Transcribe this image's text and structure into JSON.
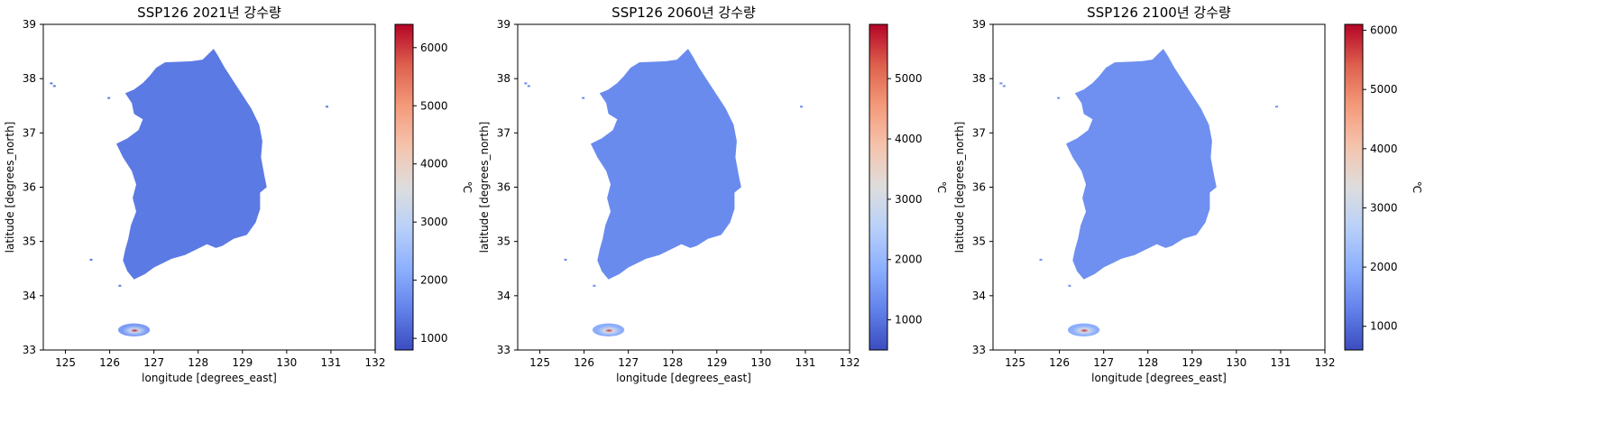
{
  "chart_data": [
    {
      "type": "heatmap",
      "title": "SSP126 2021년 강수량",
      "xlabel": "longitude [degrees_east]",
      "ylabel": "latitude [degrees_north]",
      "xlim": [
        124.5,
        132
      ],
      "ylim": [
        33,
        39
      ],
      "xticks": [
        125,
        126,
        127,
        128,
        129,
        130,
        131,
        132
      ],
      "yticks": [
        33,
        34,
        35,
        36,
        37,
        38,
        39
      ],
      "colorbar": {
        "label": "℃",
        "min": 800,
        "max": 6400,
        "ticks": [
          1000,
          2000,
          3000,
          4000,
          5000,
          6000
        ],
        "colormap": "coolwarm"
      },
      "grid": false,
      "mainland_value": 1400,
      "jeju_values": {
        "edge": 1900,
        "mid": 3200,
        "peak": 6200
      }
    },
    {
      "type": "heatmap",
      "title": "SSP126 2060년 강수량",
      "xlabel": "longitude [degrees_east]",
      "ylabel": "latitude [degrees_north]",
      "xlim": [
        124.5,
        132
      ],
      "ylim": [
        33,
        39
      ],
      "xticks": [
        125,
        126,
        127,
        128,
        129,
        130,
        131,
        132
      ],
      "yticks": [
        33,
        34,
        35,
        36,
        37,
        38,
        39
      ],
      "colorbar": {
        "label": "℃",
        "min": 500,
        "max": 5900,
        "ticks": [
          1000,
          2000,
          3000,
          4000,
          5000
        ],
        "colormap": "coolwarm"
      },
      "grid": false,
      "mainland_value": 1300,
      "jeju_values": {
        "edge": 1800,
        "mid": 3000,
        "peak": 5600
      }
    },
    {
      "type": "heatmap",
      "title": "SSP126 2100년 강수량",
      "xlabel": "longitude [degrees_east]",
      "ylabel": "latitude [degrees_north]",
      "xlim": [
        124.5,
        132
      ],
      "ylim": [
        33,
        39
      ],
      "xticks": [
        125,
        126,
        127,
        128,
        129,
        130,
        131,
        132
      ],
      "yticks": [
        33,
        34,
        35,
        36,
        37,
        38,
        39
      ],
      "colorbar": {
        "label": "℃",
        "min": 600,
        "max": 6100,
        "ticks": [
          1000,
          2000,
          3000,
          4000,
          5000,
          6000
        ],
        "colormap": "coolwarm"
      },
      "grid": false,
      "mainland_value": 1500,
      "jeju_values": {
        "edge": 1950,
        "mid": 3100,
        "peak": 5800
      }
    }
  ]
}
